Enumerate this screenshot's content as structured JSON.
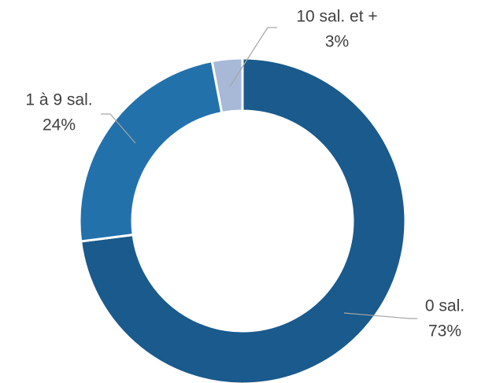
{
  "chart_data": {
    "type": "donut",
    "categories": [
      "0 sal.",
      "1 à 9 sal.",
      "10 sal. et +"
    ],
    "values": [
      73,
      24,
      3
    ],
    "value_labels": [
      "73%",
      "24%",
      "3%"
    ],
    "colors": [
      "#1a5a8c",
      "#2371ab",
      "#a7b9d6"
    ]
  }
}
